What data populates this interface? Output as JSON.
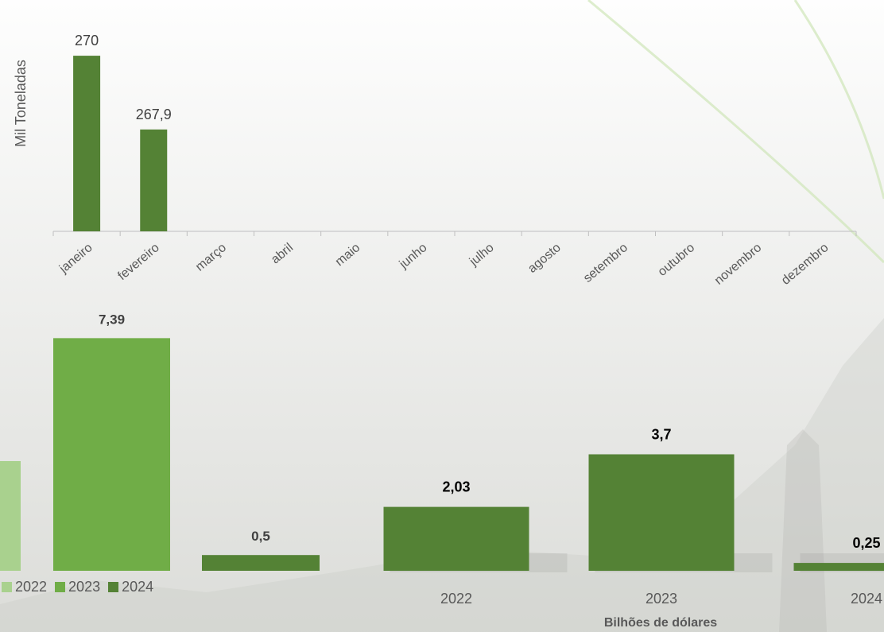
{
  "colors": {
    "c2022": "#a9d18e",
    "c2023": "#70ad47",
    "c2024": "#548235",
    "label_gray": "#404040",
    "axis_gray": "#bfbfbf"
  },
  "legend": [
    {
      "name": "2022",
      "color": "#a9d18e"
    },
    {
      "name": "2023",
      "color": "#70ad47"
    },
    {
      "name": "2024",
      "color": "#548235"
    }
  ],
  "chart_data": [
    {
      "type": "bar",
      "ylabel": "Mil Toneladas",
      "categories": [
        "janeiro",
        "fevereiro",
        "março",
        "abril",
        "maio",
        "junho",
        "julho",
        "agosto",
        "setembro",
        "outubro",
        "novembro",
        "dezembro"
      ],
      "series": [
        {
          "values": [
            270,
            267.9,
            null,
            null,
            null,
            null,
            null,
            null,
            null,
            null,
            null,
            null
          ],
          "labels": [
            "270",
            "267,9",
            null,
            null,
            null,
            null,
            null,
            null,
            null,
            null,
            null,
            null
          ],
          "color": "#548235"
        }
      ],
      "ylim": [
        265,
        270.5
      ],
      "grid": false
    },
    {
      "type": "bar",
      "xlabel": "Bilhões de dólares",
      "categories": [
        "2022",
        "2023",
        "2024"
      ],
      "series": [
        {
          "name": "2022",
          "color": "#a9d18e",
          "values": [
            null,
            null,
            null
          ]
        },
        {
          "name": "2023",
          "color": "#70ad47",
          "values": [
            7.39,
            null,
            null
          ],
          "labels": [
            "7,39",
            null,
            null
          ]
        },
        {
          "name": "2024",
          "color": "#548235",
          "values": [
            0.5,
            null,
            null
          ],
          "labels": [
            "0,5",
            null,
            null
          ]
        }
      ],
      "ylim": [
        0,
        8
      ]
    },
    {
      "type": "bar",
      "categories": [
        "2022",
        "2023",
        "2024"
      ],
      "series": [
        {
          "color": "#548235",
          "values": [
            2.03,
            3.7,
            0.25
          ],
          "labels": [
            "2,03",
            "3,7",
            "0,25"
          ]
        }
      ],
      "ylim": [
        0,
        8
      ]
    }
  ]
}
